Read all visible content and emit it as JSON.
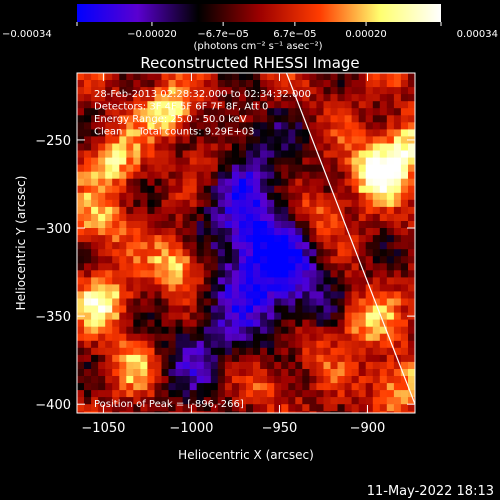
{
  "chart_data": {
    "type": "heatmap",
    "title": "Reconstructed RHESSI Image",
    "xlabel": "Heliocentric X (arcsec)",
    "ylabel": "Heliocentric Y (arcsec)",
    "xlim": [
      -1065,
      -873
    ],
    "ylim": [
      -405,
      -212
    ],
    "x_ticks": [
      -1050,
      -1000,
      -950,
      -900
    ],
    "x_tick_labels": [
      "−1050",
      "−1000",
      "−950",
      "−900"
    ],
    "y_ticks": [
      -250,
      -300,
      -350,
      -400
    ],
    "y_tick_labels": [
      "−250",
      "−300",
      "−350",
      "−400"
    ],
    "colorbar": {
      "range": [
        -0.00034,
        0.00034
      ],
      "ticks": [
        -0.00034,
        -0.0002,
        -6.7e-05,
        6.7e-05,
        0.0002,
        0.00034
      ],
      "tick_labels": [
        "−0.00034",
        "−0.00020",
        "−6.7e−05",
        "6.7e−05",
        "0.00020",
        "0.00034"
      ],
      "unit_label": "(photons cm⁻² s⁻¹ asec⁻²)",
      "colors": [
        "#0000ff",
        "#5a00d0",
        "#000000",
        "#9b0000",
        "#ff3c00",
        "#ffff70",
        "#ffffff"
      ]
    },
    "annotations": [
      "28-Feb-2013 02:28:32.000 to 02:34:32.000",
      "Detectors: 3F 4F 5F 6F 7F 8F, Att 0",
      "Energy Range: 25.0 - 50.0 keV",
      "Clean     Total counts: 9.29E+03"
    ],
    "peak_label": "Position of Peak = [-896,-266]",
    "peak": [
      -896,
      -266
    ],
    "limb_line": [
      [
        -946,
        -212
      ],
      [
        -873,
        -400
      ]
    ],
    "sources": [
      {
        "x": -1012,
        "y": -232,
        "v": 0.00028
      },
      {
        "x": -1008,
        "y": -318,
        "v": 0.0003
      },
      {
        "x": -896,
        "y": -266,
        "v": 0.00034
      },
      {
        "x": -1052,
        "y": -340,
        "v": 0.00026
      },
      {
        "x": -880,
        "y": -250,
        "v": 0.00024
      },
      {
        "x": -1045,
        "y": -260,
        "v": 0.00022
      },
      {
        "x": -905,
        "y": -350,
        "v": 0.00022
      },
      {
        "x": -885,
        "y": -385,
        "v": 0.00022
      },
      {
        "x": -1055,
        "y": -295,
        "v": 0.00018
      },
      {
        "x": -990,
        "y": -260,
        "v": 0.00018
      },
      {
        "x": -1035,
        "y": -375,
        "v": 0.00016
      },
      {
        "x": -960,
        "y": -385,
        "v": 0.00014
      },
      {
        "x": -930,
        "y": -290,
        "v": 0.00018
      },
      {
        "x": -935,
        "y": -365,
        "v": 0.00015
      }
    ],
    "depressions": [
      {
        "x": -965,
        "y": -310,
        "v": -0.0003
      },
      {
        "x": -975,
        "y": -260,
        "v": -0.0002
      },
      {
        "x": -945,
        "y": -340,
        "v": -0.00018
      },
      {
        "x": -995,
        "y": -370,
        "v": -0.00016
      }
    ]
  },
  "footer": {
    "timestamp": "11-May-2022 18:13"
  }
}
